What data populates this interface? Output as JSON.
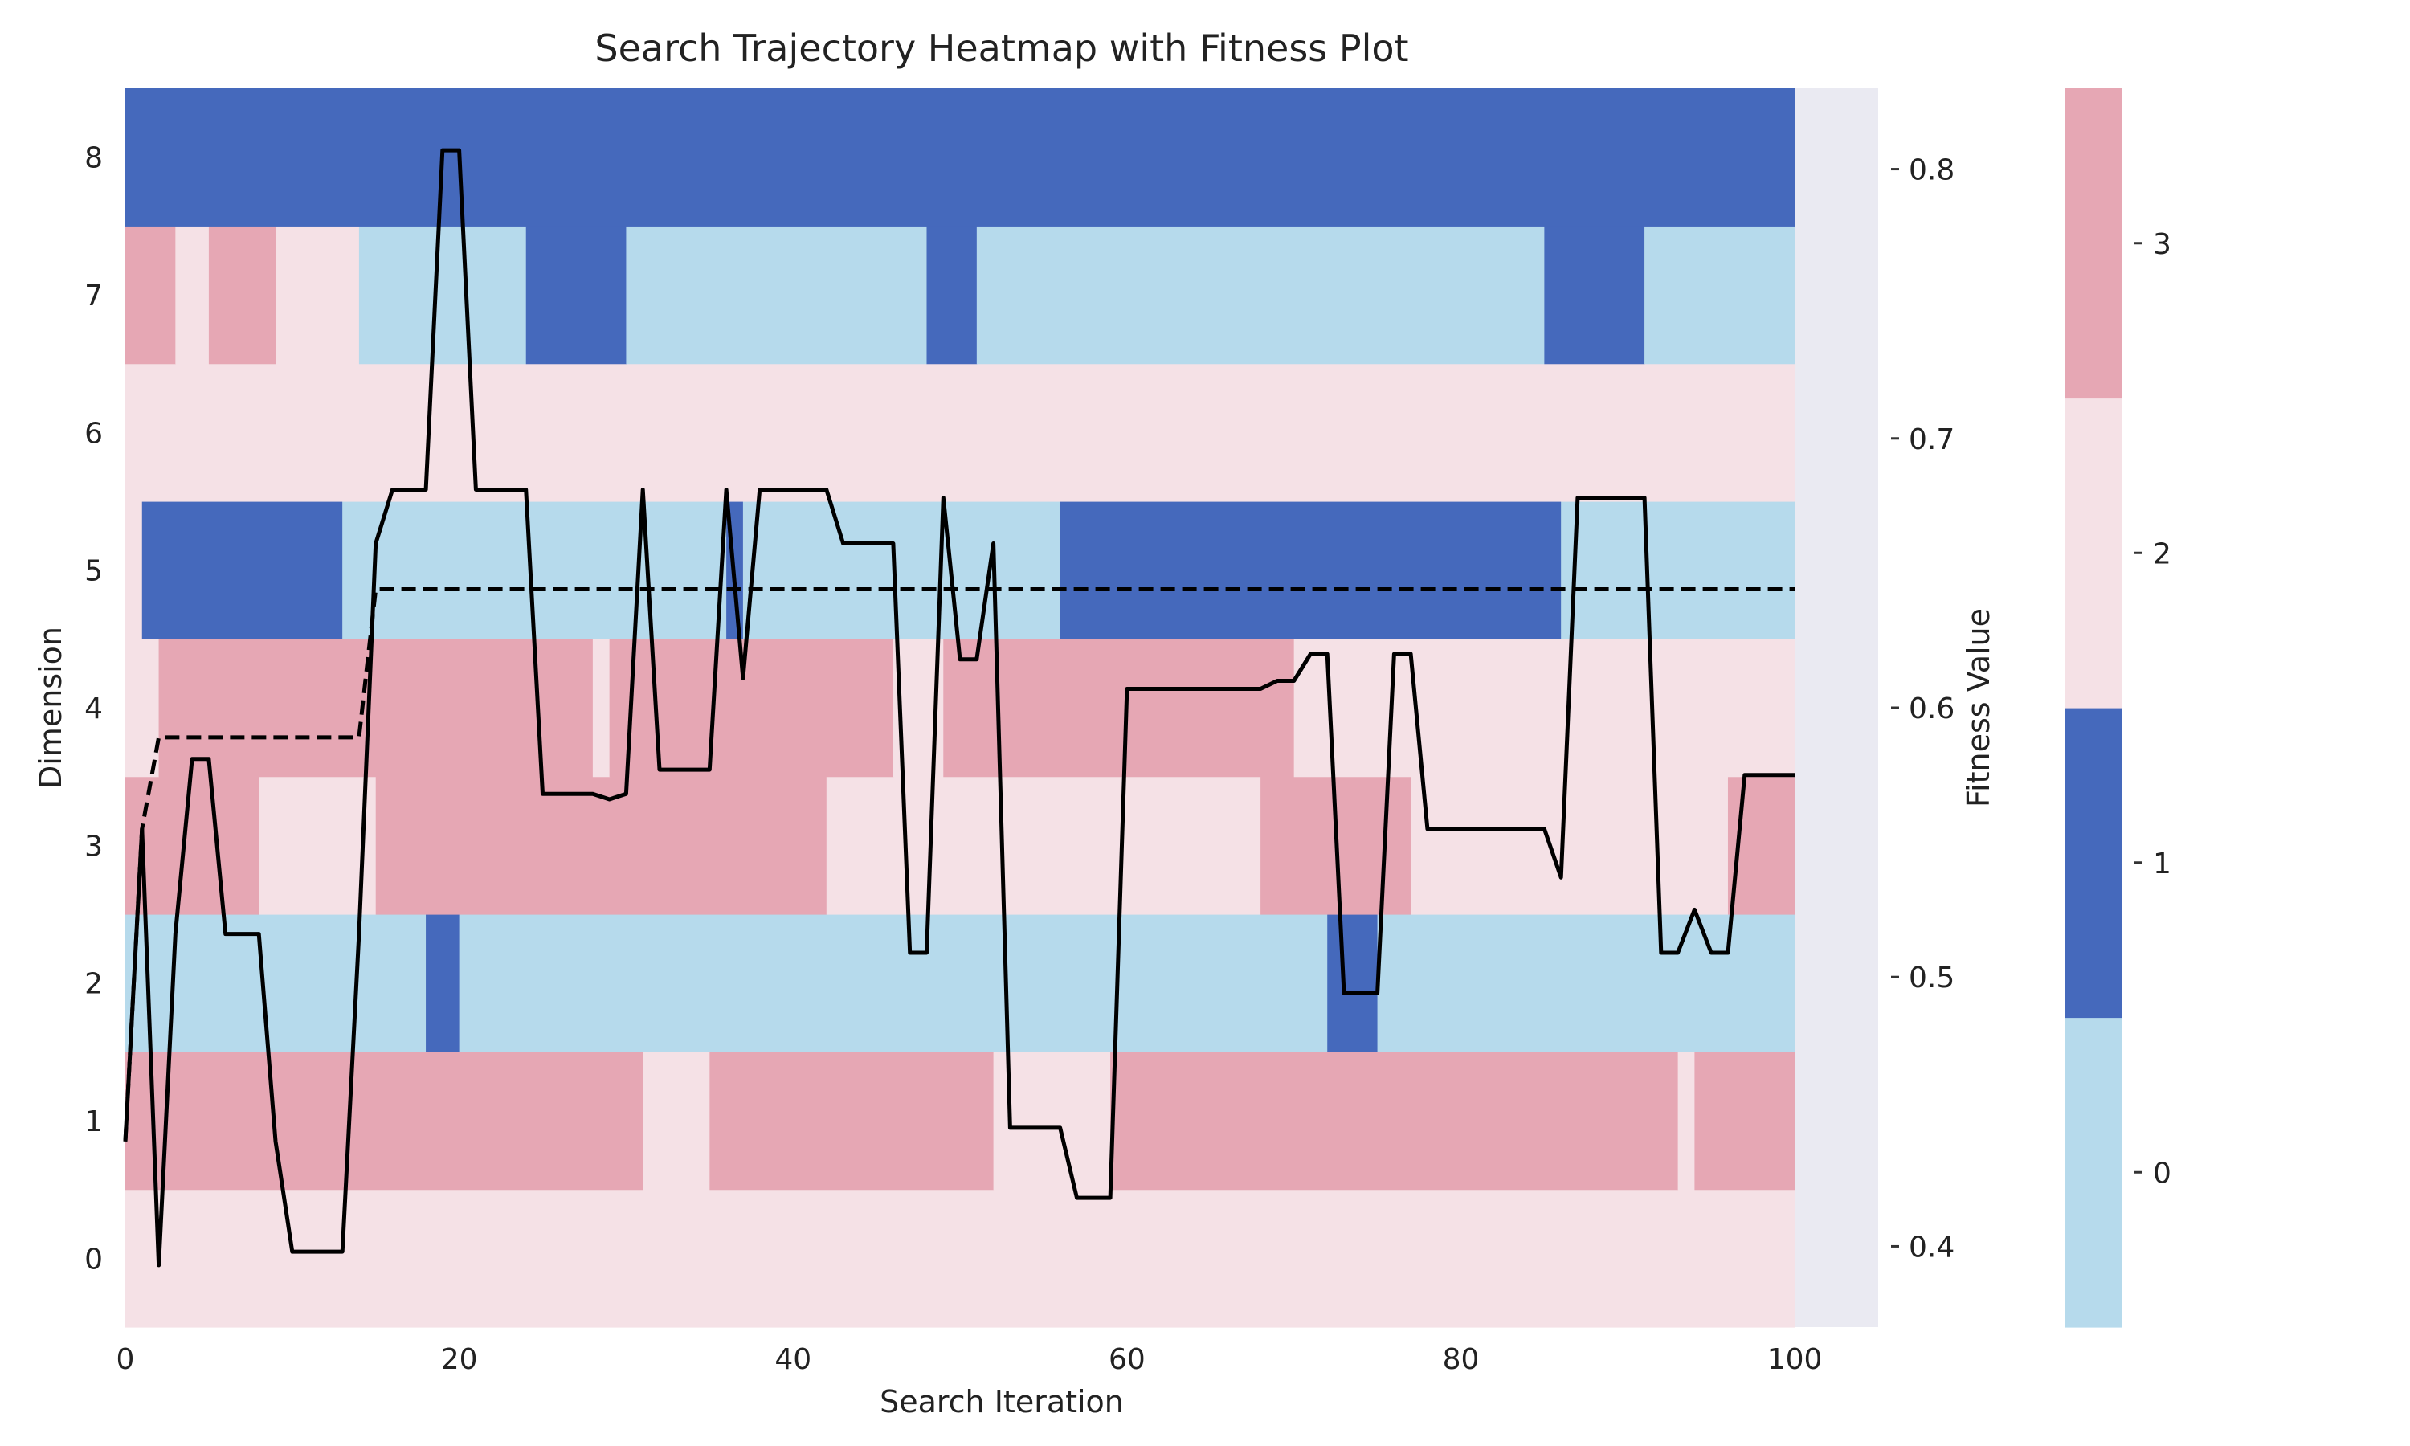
{
  "chart_data": {
    "type": "heatmap",
    "title": "Search Trajectory Heatmap with Fitness Plot",
    "xlabel": "Search Iteration",
    "ylabel": "Dimension",
    "y2label": "Fitness Value",
    "xlim": [
      0,
      105
    ],
    "ylim": [
      -0.5,
      8.5
    ],
    "y2lim": [
      0.37,
      0.83
    ],
    "xticks": [
      0,
      20,
      40,
      60,
      80,
      100
    ],
    "yticks": [
      0,
      1,
      2,
      3,
      4,
      5,
      6,
      7,
      8
    ],
    "y2ticks": [
      0.4,
      0.5,
      0.6,
      0.7,
      0.8
    ],
    "y2ticklabels": [
      "0.4",
      "0.5",
      "0.6",
      "0.7",
      "0.8"
    ],
    "heatmap_x_extent": [
      0,
      100
    ],
    "palette": {
      "0": "#b6daec",
      "1": "#4569bc",
      "2": "#f5e1e6",
      "3": "#e6a7b4"
    },
    "background": "#eaeaf2",
    "colorbar": {
      "categories": [
        0,
        1,
        2,
        3
      ],
      "ticklabels": [
        "0",
        "1",
        "2",
        "3"
      ],
      "placement": "right"
    },
    "heatmap_rows": [
      {
        "dimension": 0,
        "segments": [
          [
            0,
            100,
            2
          ]
        ]
      },
      {
        "dimension": 1,
        "segments": [
          [
            0,
            31,
            3
          ],
          [
            31,
            35,
            2
          ],
          [
            35,
            52,
            3
          ],
          [
            52,
            59,
            2
          ],
          [
            59,
            93,
            3
          ],
          [
            93,
            94,
            2
          ],
          [
            94,
            100,
            3
          ]
        ]
      },
      {
        "dimension": 2,
        "segments": [
          [
            0,
            18,
            0
          ],
          [
            18,
            20,
            1
          ],
          [
            20,
            72,
            0
          ],
          [
            72,
            75,
            1
          ],
          [
            75,
            100,
            0
          ]
        ]
      },
      {
        "dimension": 3,
        "segments": [
          [
            0,
            8,
            3
          ],
          [
            8,
            15,
            2
          ],
          [
            15,
            42,
            3
          ],
          [
            42,
            68,
            2
          ],
          [
            68,
            77,
            3
          ],
          [
            77,
            96,
            2
          ],
          [
            96,
            100,
            3
          ]
        ]
      },
      {
        "dimension": 4,
        "segments": [
          [
            0,
            2,
            2
          ],
          [
            2,
            28,
            3
          ],
          [
            28,
            29,
            2
          ],
          [
            29,
            46,
            3
          ],
          [
            46,
            49,
            2
          ],
          [
            49,
            70,
            3
          ],
          [
            70,
            100,
            2
          ]
        ]
      },
      {
        "dimension": 5,
        "segments": [
          [
            0,
            1,
            2
          ],
          [
            1,
            13,
            1
          ],
          [
            13,
            36,
            0
          ],
          [
            36,
            37,
            1
          ],
          [
            37,
            56,
            0
          ],
          [
            56,
            86,
            1
          ],
          [
            86,
            100,
            0
          ]
        ]
      },
      {
        "dimension": 6,
        "segments": [
          [
            0,
            100,
            2
          ]
        ]
      },
      {
        "dimension": 7,
        "segments": [
          [
            0,
            3,
            3
          ],
          [
            3,
            5,
            2
          ],
          [
            5,
            9,
            3
          ],
          [
            9,
            14,
            2
          ],
          [
            14,
            24,
            0
          ],
          [
            24,
            30,
            1
          ],
          [
            30,
            48,
            0
          ],
          [
            48,
            51,
            1
          ],
          [
            51,
            85,
            0
          ],
          [
            85,
            91,
            1
          ],
          [
            91,
            100,
            0
          ]
        ]
      },
      {
        "dimension": 8,
        "segments": [
          [
            0,
            100,
            1
          ]
        ]
      }
    ],
    "series": [
      {
        "style": "solid",
        "color": "#000000",
        "x": [
          0,
          1,
          2,
          3,
          4,
          5,
          6,
          7,
          8,
          9,
          10,
          11,
          12,
          13,
          14,
          15,
          16,
          17,
          18,
          19,
          20,
          21,
          22,
          23,
          24,
          25,
          26,
          27,
          28,
          29,
          30,
          31,
          32,
          33,
          34,
          35,
          36,
          37,
          38,
          39,
          40,
          41,
          42,
          43,
          44,
          45,
          46,
          47,
          48,
          49,
          50,
          51,
          52,
          53,
          54,
          55,
          56,
          57,
          58,
          59,
          60,
          61,
          62,
          63,
          64,
          65,
          66,
          67,
          68,
          69,
          70,
          71,
          72,
          73,
          74,
          75,
          76,
          77,
          78,
          79,
          80,
          81,
          82,
          83,
          84,
          85,
          86,
          87,
          88,
          89,
          90,
          91,
          92,
          93,
          94,
          95,
          96,
          97,
          98,
          99,
          100
        ],
        "values": [
          0.439,
          0.555,
          0.393,
          0.516,
          0.581,
          0.581,
          0.516,
          0.516,
          0.516,
          0.439,
          0.398,
          0.398,
          0.398,
          0.398,
          0.516,
          0.661,
          0.681,
          0.681,
          0.681,
          0.807,
          0.807,
          0.681,
          0.681,
          0.681,
          0.681,
          0.568,
          0.568,
          0.568,
          0.568,
          0.566,
          0.568,
          0.681,
          0.577,
          0.577,
          0.577,
          0.577,
          0.681,
          0.611,
          0.681,
          0.681,
          0.681,
          0.681,
          0.681,
          0.661,
          0.661,
          0.661,
          0.661,
          0.509,
          0.509,
          0.678,
          0.618,
          0.618,
          0.661,
          0.444,
          0.444,
          0.444,
          0.444,
          0.418,
          0.418,
          0.418,
          0.607,
          0.607,
          0.607,
          0.607,
          0.607,
          0.607,
          0.607,
          0.607,
          0.607,
          0.61,
          0.61,
          0.62,
          0.62,
          0.494,
          0.494,
          0.494,
          0.62,
          0.62,
          0.555,
          0.555,
          0.555,
          0.555,
          0.555,
          0.555,
          0.555,
          0.555,
          0.537,
          0.678,
          0.678,
          0.678,
          0.678,
          0.678,
          0.509,
          0.509,
          0.525,
          0.509,
          0.509,
          0.575,
          0.575,
          0.575,
          0.575
        ]
      },
      {
        "style": "dashed",
        "color": "#000000",
        "x": [
          0,
          1,
          2,
          14,
          15,
          100
        ],
        "values": [
          0.439,
          0.555,
          0.589,
          0.589,
          0.644,
          0.644
        ]
      }
    ]
  }
}
